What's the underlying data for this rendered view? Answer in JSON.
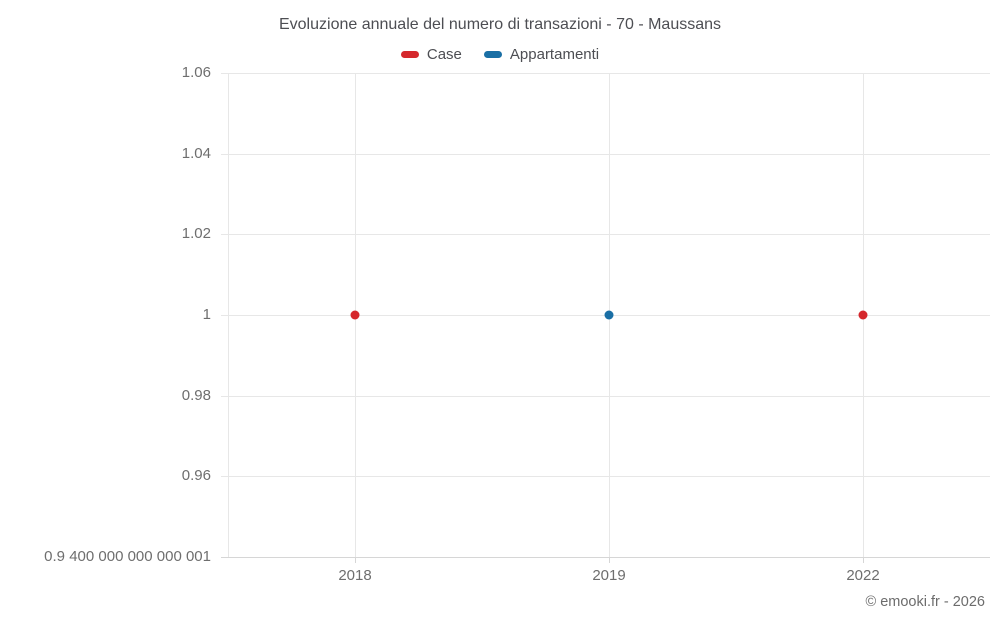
{
  "credit": "© emooki.fr - 2026",
  "chart_data": {
    "type": "scatter",
    "title": "Evoluzione annuale del numero di transazioni - 70 - Maussans",
    "categories": [
      "2018",
      "2019",
      "2022"
    ],
    "ylim": [
      0.94,
      1.06
    ],
    "grid": true,
    "legend_position": "top",
    "y_ticks": [
      {
        "value": 1.06,
        "label": "1.06"
      },
      {
        "value": 1.04,
        "label": "1.04"
      },
      {
        "value": 1.02,
        "label": "1.02"
      },
      {
        "value": 1,
        "label": "1"
      },
      {
        "value": 0.98,
        "label": "0.98"
      },
      {
        "value": 0.96,
        "label": "0.96"
      },
      {
        "value": 0.94,
        "label": "0.9 400 000 000 000 001"
      }
    ],
    "series": [
      {
        "name": "Case",
        "color": "#d5282d",
        "points": [
          {
            "category": "2018",
            "value": 1
          },
          {
            "category": "2022",
            "value": 1
          }
        ]
      },
      {
        "name": "Appartamenti",
        "color": "#1a6fa5",
        "points": [
          {
            "category": "2019",
            "value": 1
          }
        ]
      }
    ]
  }
}
